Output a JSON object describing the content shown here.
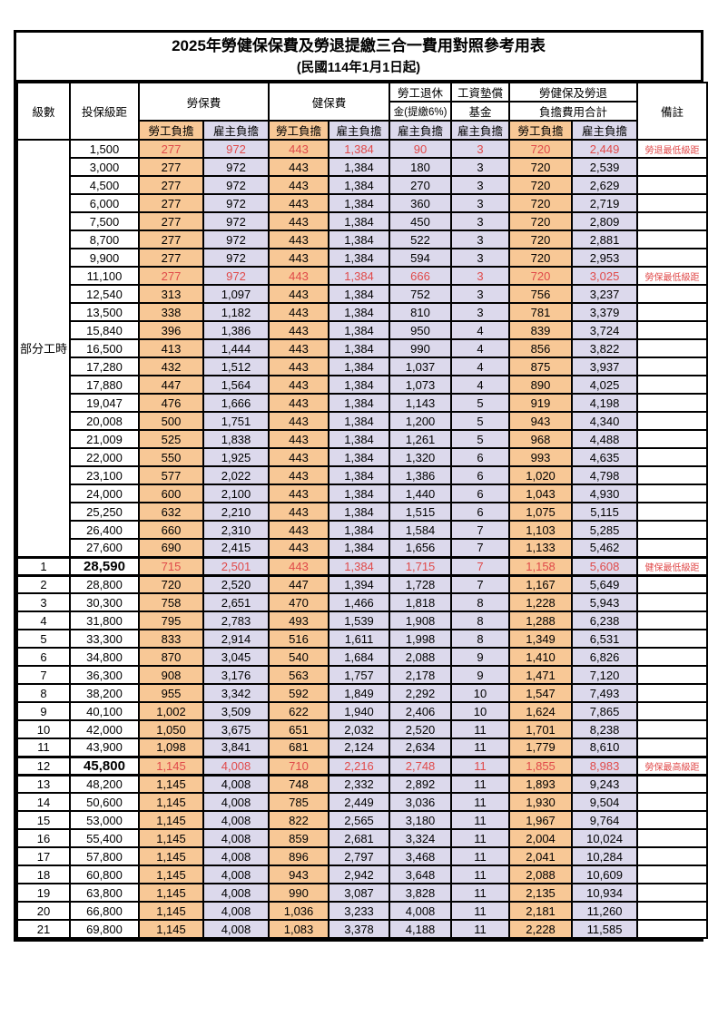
{
  "title": "2025年勞健保保費及勞退提繳三合一費用對照參考用表",
  "subtitle": "(民國114年1月1日起)",
  "header": {
    "level": "級數",
    "bracket": "投保級距",
    "labor_insurance": "勞保費",
    "health_insurance": "健保費",
    "pension_line1": "勞工退休",
    "pension_line2": "金(提繳6%)",
    "wage_fund_line1": "工資墊償",
    "wage_fund_line2": "基金",
    "total_line1": "勞健保及勞退",
    "total_line2": "負擔費用合計",
    "remark": "備註",
    "employee_share": "勞工負擔",
    "employer_share": "雇主負擔"
  },
  "colors": {
    "employee_bg": "#F8C896",
    "employer_bg": "#DCD9EC",
    "highlight_text": "#E04A4A",
    "border": "#000000"
  },
  "part_time": {
    "label": "部分工時",
    "rowspan": 23
  },
  "rows": [
    {
      "lv": "",
      "br": "1,500",
      "le": "277",
      "lr": "972",
      "he": "443",
      "hr": "1,384",
      "pn": "90",
      "wf": "3",
      "te": "720",
      "ter": "2,449",
      "rm": "勞退最低級距",
      "red": true
    },
    {
      "lv": "",
      "br": "3,000",
      "le": "277",
      "lr": "972",
      "he": "443",
      "hr": "1,384",
      "pn": "180",
      "wf": "3",
      "te": "720",
      "ter": "2,539",
      "rm": ""
    },
    {
      "lv": "",
      "br": "4,500",
      "le": "277",
      "lr": "972",
      "he": "443",
      "hr": "1,384",
      "pn": "270",
      "wf": "3",
      "te": "720",
      "ter": "2,629",
      "rm": ""
    },
    {
      "lv": "",
      "br": "6,000",
      "le": "277",
      "lr": "972",
      "he": "443",
      "hr": "1,384",
      "pn": "360",
      "wf": "3",
      "te": "720",
      "ter": "2,719",
      "rm": ""
    },
    {
      "lv": "",
      "br": "7,500",
      "le": "277",
      "lr": "972",
      "he": "443",
      "hr": "1,384",
      "pn": "450",
      "wf": "3",
      "te": "720",
      "ter": "2,809",
      "rm": ""
    },
    {
      "lv": "",
      "br": "8,700",
      "le": "277",
      "lr": "972",
      "he": "443",
      "hr": "1,384",
      "pn": "522",
      "wf": "3",
      "te": "720",
      "ter": "2,881",
      "rm": ""
    },
    {
      "lv": "",
      "br": "9,900",
      "le": "277",
      "lr": "972",
      "he": "443",
      "hr": "1,384",
      "pn": "594",
      "wf": "3",
      "te": "720",
      "ter": "2,953",
      "rm": ""
    },
    {
      "lv": "",
      "br": "11,100",
      "le": "277",
      "lr": "972",
      "he": "443",
      "hr": "1,384",
      "pn": "666",
      "wf": "3",
      "te": "720",
      "ter": "3,025",
      "rm": "勞保最低級距",
      "red": true
    },
    {
      "lv": "",
      "br": "12,540",
      "le": "313",
      "lr": "1,097",
      "he": "443",
      "hr": "1,384",
      "pn": "752",
      "wf": "3",
      "te": "756",
      "ter": "3,237",
      "rm": ""
    },
    {
      "lv": "",
      "br": "13,500",
      "le": "338",
      "lr": "1,182",
      "he": "443",
      "hr": "1,384",
      "pn": "810",
      "wf": "3",
      "te": "781",
      "ter": "3,379",
      "rm": ""
    },
    {
      "lv": "",
      "br": "15,840",
      "le": "396",
      "lr": "1,386",
      "he": "443",
      "hr": "1,384",
      "pn": "950",
      "wf": "4",
      "te": "839",
      "ter": "3,724",
      "rm": ""
    },
    {
      "lv": "",
      "br": "16,500",
      "le": "413",
      "lr": "1,444",
      "he": "443",
      "hr": "1,384",
      "pn": "990",
      "wf": "4",
      "te": "856",
      "ter": "3,822",
      "rm": ""
    },
    {
      "lv": "",
      "br": "17,280",
      "le": "432",
      "lr": "1,512",
      "he": "443",
      "hr": "1,384",
      "pn": "1,037",
      "wf": "4",
      "te": "875",
      "ter": "3,937",
      "rm": ""
    },
    {
      "lv": "",
      "br": "17,880",
      "le": "447",
      "lr": "1,564",
      "he": "443",
      "hr": "1,384",
      "pn": "1,073",
      "wf": "4",
      "te": "890",
      "ter": "4,025",
      "rm": ""
    },
    {
      "lv": "",
      "br": "19,047",
      "le": "476",
      "lr": "1,666",
      "he": "443",
      "hr": "1,384",
      "pn": "1,143",
      "wf": "5",
      "te": "919",
      "ter": "4,198",
      "rm": ""
    },
    {
      "lv": "",
      "br": "20,008",
      "le": "500",
      "lr": "1,751",
      "he": "443",
      "hr": "1,384",
      "pn": "1,200",
      "wf": "5",
      "te": "943",
      "ter": "4,340",
      "rm": ""
    },
    {
      "lv": "",
      "br": "21,009",
      "le": "525",
      "lr": "1,838",
      "he": "443",
      "hr": "1,384",
      "pn": "1,261",
      "wf": "5",
      "te": "968",
      "ter": "4,488",
      "rm": ""
    },
    {
      "lv": "",
      "br": "22,000",
      "le": "550",
      "lr": "1,925",
      "he": "443",
      "hr": "1,384",
      "pn": "1,320",
      "wf": "6",
      "te": "993",
      "ter": "4,635",
      "rm": ""
    },
    {
      "lv": "",
      "br": "23,100",
      "le": "577",
      "lr": "2,022",
      "he": "443",
      "hr": "1,384",
      "pn": "1,386",
      "wf": "6",
      "te": "1,020",
      "ter": "4,798",
      "rm": ""
    },
    {
      "lv": "",
      "br": "24,000",
      "le": "600",
      "lr": "2,100",
      "he": "443",
      "hr": "1,384",
      "pn": "1,440",
      "wf": "6",
      "te": "1,043",
      "ter": "4,930",
      "rm": ""
    },
    {
      "lv": "",
      "br": "25,250",
      "le": "632",
      "lr": "2,210",
      "he": "443",
      "hr": "1,384",
      "pn": "1,515",
      "wf": "6",
      "te": "1,075",
      "ter": "5,115",
      "rm": ""
    },
    {
      "lv": "",
      "br": "26,400",
      "le": "660",
      "lr": "2,310",
      "he": "443",
      "hr": "1,384",
      "pn": "1,584",
      "wf": "7",
      "te": "1,103",
      "ter": "5,285",
      "rm": ""
    },
    {
      "lv": "",
      "br": "27,600",
      "le": "690",
      "lr": "2,415",
      "he": "443",
      "hr": "1,384",
      "pn": "1,656",
      "wf": "7",
      "te": "1,133",
      "ter": "5,462",
      "rm": ""
    },
    {
      "lv": "1",
      "br": "28,590",
      "le": "715",
      "lr": "2,501",
      "he": "443",
      "hr": "1,384",
      "pn": "1,715",
      "wf": "7",
      "te": "1,158",
      "ter": "5,608",
      "rm": "健保最低級距",
      "red": true,
      "bold": true,
      "thick": true
    },
    {
      "lv": "2",
      "br": "28,800",
      "le": "720",
      "lr": "2,520",
      "he": "447",
      "hr": "1,394",
      "pn": "1,728",
      "wf": "7",
      "te": "1,167",
      "ter": "5,649",
      "rm": "",
      "thick": true
    },
    {
      "lv": "3",
      "br": "30,300",
      "le": "758",
      "lr": "2,651",
      "he": "470",
      "hr": "1,466",
      "pn": "1,818",
      "wf": "8",
      "te": "1,228",
      "ter": "5,943",
      "rm": ""
    },
    {
      "lv": "4",
      "br": "31,800",
      "le": "795",
      "lr": "2,783",
      "he": "493",
      "hr": "1,539",
      "pn": "1,908",
      "wf": "8",
      "te": "1,288",
      "ter": "6,238",
      "rm": ""
    },
    {
      "lv": "5",
      "br": "33,300",
      "le": "833",
      "lr": "2,914",
      "he": "516",
      "hr": "1,611",
      "pn": "1,998",
      "wf": "8",
      "te": "1,349",
      "ter": "6,531",
      "rm": ""
    },
    {
      "lv": "6",
      "br": "34,800",
      "le": "870",
      "lr": "3,045",
      "he": "540",
      "hr": "1,684",
      "pn": "2,088",
      "wf": "9",
      "te": "1,410",
      "ter": "6,826",
      "rm": ""
    },
    {
      "lv": "7",
      "br": "36,300",
      "le": "908",
      "lr": "3,176",
      "he": "563",
      "hr": "1,757",
      "pn": "2,178",
      "wf": "9",
      "te": "1,471",
      "ter": "7,120",
      "rm": ""
    },
    {
      "lv": "8",
      "br": "38,200",
      "le": "955",
      "lr": "3,342",
      "he": "592",
      "hr": "1,849",
      "pn": "2,292",
      "wf": "10",
      "te": "1,547",
      "ter": "7,493",
      "rm": ""
    },
    {
      "lv": "9",
      "br": "40,100",
      "le": "1,002",
      "lr": "3,509",
      "he": "622",
      "hr": "1,940",
      "pn": "2,406",
      "wf": "10",
      "te": "1,624",
      "ter": "7,865",
      "rm": ""
    },
    {
      "lv": "10",
      "br": "42,000",
      "le": "1,050",
      "lr": "3,675",
      "he": "651",
      "hr": "2,032",
      "pn": "2,520",
      "wf": "11",
      "te": "1,701",
      "ter": "8,238",
      "rm": ""
    },
    {
      "lv": "11",
      "br": "43,900",
      "le": "1,098",
      "lr": "3,841",
      "he": "681",
      "hr": "2,124",
      "pn": "2,634",
      "wf": "11",
      "te": "1,779",
      "ter": "8,610",
      "rm": ""
    },
    {
      "lv": "12",
      "br": "45,800",
      "le": "1,145",
      "lr": "4,008",
      "he": "710",
      "hr": "2,216",
      "pn": "2,748",
      "wf": "11",
      "te": "1,855",
      "ter": "8,983",
      "rm": "勞保最高級距",
      "red": true,
      "bold": true,
      "thick": true
    },
    {
      "lv": "13",
      "br": "48,200",
      "le": "1,145",
      "lr": "4,008",
      "he": "748",
      "hr": "2,332",
      "pn": "2,892",
      "wf": "11",
      "te": "1,893",
      "ter": "9,243",
      "rm": "",
      "thick": true
    },
    {
      "lv": "14",
      "br": "50,600",
      "le": "1,145",
      "lr": "4,008",
      "he": "785",
      "hr": "2,449",
      "pn": "3,036",
      "wf": "11",
      "te": "1,930",
      "ter": "9,504",
      "rm": ""
    },
    {
      "lv": "15",
      "br": "53,000",
      "le": "1,145",
      "lr": "4,008",
      "he": "822",
      "hr": "2,565",
      "pn": "3,180",
      "wf": "11",
      "te": "1,967",
      "ter": "9,764",
      "rm": ""
    },
    {
      "lv": "16",
      "br": "55,400",
      "le": "1,145",
      "lr": "4,008",
      "he": "859",
      "hr": "2,681",
      "pn": "3,324",
      "wf": "11",
      "te": "2,004",
      "ter": "10,024",
      "rm": ""
    },
    {
      "lv": "17",
      "br": "57,800",
      "le": "1,145",
      "lr": "4,008",
      "he": "896",
      "hr": "2,797",
      "pn": "3,468",
      "wf": "11",
      "te": "2,041",
      "ter": "10,284",
      "rm": ""
    },
    {
      "lv": "18",
      "br": "60,800",
      "le": "1,145",
      "lr": "4,008",
      "he": "943",
      "hr": "2,942",
      "pn": "3,648",
      "wf": "11",
      "te": "2,088",
      "ter": "10,609",
      "rm": ""
    },
    {
      "lv": "19",
      "br": "63,800",
      "le": "1,145",
      "lr": "4,008",
      "he": "990",
      "hr": "3,087",
      "pn": "3,828",
      "wf": "11",
      "te": "2,135",
      "ter": "10,934",
      "rm": ""
    },
    {
      "lv": "20",
      "br": "66,800",
      "le": "1,145",
      "lr": "4,008",
      "he": "1,036",
      "hr": "3,233",
      "pn": "4,008",
      "wf": "11",
      "te": "2,181",
      "ter": "11,260",
      "rm": ""
    },
    {
      "lv": "21",
      "br": "69,800",
      "le": "1,145",
      "lr": "4,008",
      "he": "1,083",
      "hr": "3,378",
      "pn": "4,188",
      "wf": "11",
      "te": "2,228",
      "ter": "11,585",
      "rm": ""
    }
  ]
}
